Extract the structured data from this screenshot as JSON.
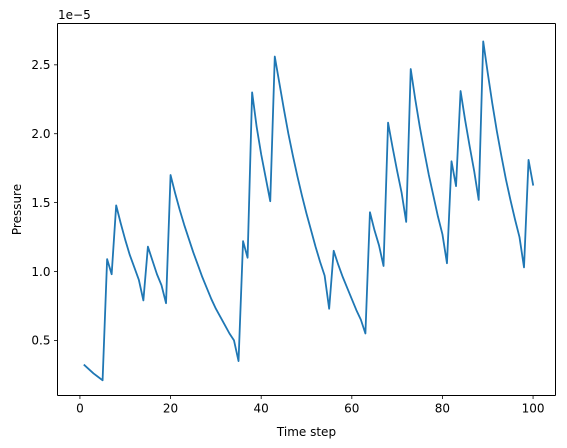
{
  "chart_data": {
    "type": "line",
    "title": "",
    "xlabel": "Time step",
    "ylabel": "Pressure",
    "offset_text": "1e−5",
    "y_scale_factor": 1e-05,
    "xlim": [
      -4.95,
      104.95
    ],
    "ylim": [
      1e-06,
      2.8e-05
    ],
    "x_ticks": [
      0,
      20,
      40,
      60,
      80,
      100
    ],
    "x_tick_labels": [
      "0",
      "20",
      "40",
      "60",
      "80",
      "100"
    ],
    "y_ticks": [
      5e-06,
      1e-05,
      1.5e-05,
      2e-05,
      2.5e-05
    ],
    "y_tick_labels": [
      "0.5",
      "1.0",
      "1.5",
      "2.0",
      "2.5"
    ],
    "grid": false,
    "legend": "none",
    "series": [
      {
        "color": "#1f77b4",
        "x": [
          1,
          2,
          3,
          4,
          5,
          6,
          7,
          8,
          9,
          10,
          11,
          12,
          13,
          14,
          15,
          16,
          17,
          18,
          19,
          20,
          21,
          22,
          23,
          24,
          25,
          26,
          27,
          28,
          29,
          30,
          31,
          32,
          33,
          34,
          35,
          36,
          37,
          38,
          39,
          40,
          41,
          42,
          43,
          44,
          45,
          46,
          47,
          48,
          49,
          50,
          51,
          52,
          53,
          54,
          55,
          56,
          57,
          58,
          59,
          60,
          61,
          62,
          63,
          64,
          65,
          66,
          67,
          68,
          69,
          70,
          71,
          72,
          73,
          74,
          75,
          76,
          77,
          78,
          79,
          80,
          81,
          82,
          83,
          84,
          85,
          86,
          87,
          88,
          89,
          90,
          91,
          92,
          93,
          94,
          95,
          96,
          97,
          98,
          99,
          100
        ],
        "y": [
          3.2e-06,
          2.9e-06,
          2.6e-06,
          2.35e-06,
          2.1e-06,
          1.09e-05,
          9.8e-06,
          1.48e-05,
          1.35e-05,
          1.23e-05,
          1.12e-05,
          1.03e-05,
          9.4e-06,
          7.9e-06,
          1.18e-05,
          1.08e-05,
          9.8e-06,
          9e-06,
          7.7e-06,
          1.7e-05,
          1.57e-05,
          1.45e-05,
          1.34e-05,
          1.24e-05,
          1.14e-05,
          1.05e-05,
          9.6e-06,
          8.8e-06,
          8e-06,
          7.3e-06,
          6.7e-06,
          6.1e-06,
          5.5e-06,
          5e-06,
          3.5e-06,
          1.22e-05,
          1.1e-05,
          2.3e-05,
          2.05e-05,
          1.85e-05,
          1.68e-05,
          1.51e-05,
          2.56e-05,
          2.37e-05,
          2.18e-05,
          2e-05,
          1.84e-05,
          1.69e-05,
          1.55e-05,
          1.42e-05,
          1.3e-05,
          1.18e-05,
          1.07e-05,
          9.7e-06,
          7.3e-06,
          1.15e-05,
          1.05e-05,
          9.6e-06,
          8.8e-06,
          8e-06,
          7.2e-06,
          6.5e-06,
          5.5e-06,
          1.43e-05,
          1.3e-05,
          1.19e-05,
          1.04e-05,
          2.08e-05,
          1.9e-05,
          1.73e-05,
          1.57e-05,
          1.36e-05,
          2.47e-05,
          2.25e-05,
          2.05e-05,
          1.87e-05,
          1.7e-05,
          1.55e-05,
          1.4e-05,
          1.27e-05,
          1.06e-05,
          1.8e-05,
          1.62e-05,
          2.31e-05,
          2.1e-05,
          1.91e-05,
          1.73e-05,
          1.52e-05,
          2.67e-05,
          2.44e-05,
          2.22e-05,
          2.02e-05,
          1.84e-05,
          1.67e-05,
          1.52e-05,
          1.38e-05,
          1.25e-05,
          1.03e-05,
          1.81e-05,
          1.63e-05
        ]
      }
    ]
  }
}
